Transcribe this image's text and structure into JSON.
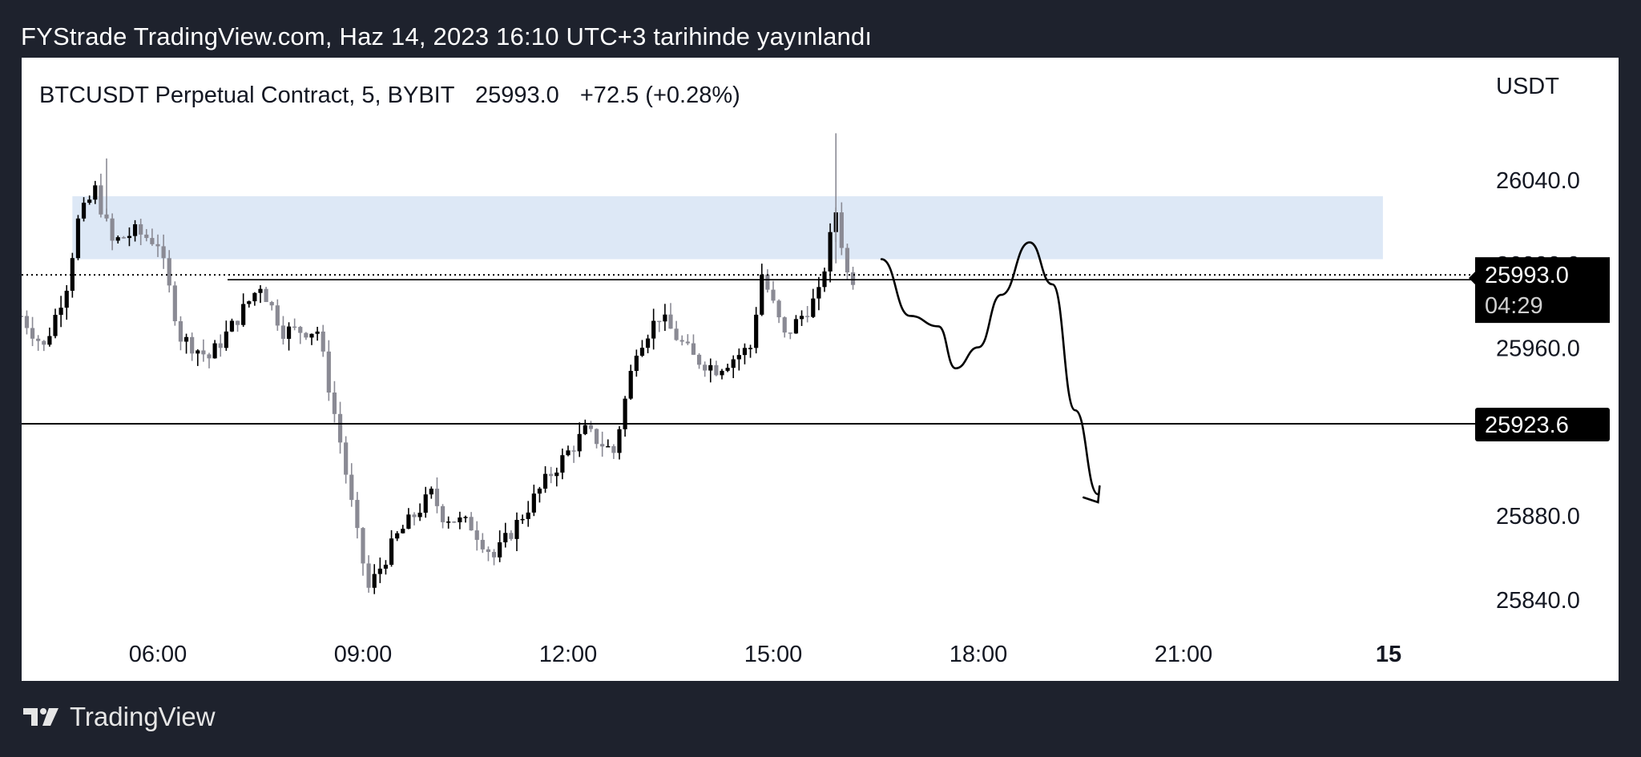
{
  "caption": "FYStrade TradingView.com, Haz 14, 2023 16:10 UTC+3 tarihinde yayınlandı",
  "footer": {
    "brand": "TradingView"
  },
  "colors": {
    "background": "#1e222d",
    "panel": "#ffffff",
    "candle_up": "#000000",
    "candle_down": "#8a8a94",
    "zone": "#dde8f6",
    "label_bg": "#000000"
  },
  "chart_data": {
    "type": "candlestick",
    "legend": {
      "symbol": "BTCUSDT Perpetual Contract, 5, BYBIT",
      "last": "25993.0",
      "change": "+72.5 (+0.28%)"
    },
    "y_unit": "USDT",
    "y_ticks": [
      "26040.0",
      "26000.0",
      "25960.0",
      "25880.0",
      "25840.0"
    ],
    "x_ticks": [
      "06:00",
      "09:00",
      "12:00",
      "15:00",
      "18:00",
      "21:00",
      "15"
    ],
    "ylim": [
      25823,
      26072
    ],
    "price_label": {
      "value": "25993.0",
      "countdown": "04:29"
    },
    "level_label": {
      "value": "25923.6"
    },
    "horizontal_lines": [
      25923.6,
      25993.0
    ],
    "zone": {
      "from_time": "04:45",
      "to_time": "23:55",
      "low": 26002,
      "high": 26032
    },
    "candles_close_path": [
      [
        "04:00",
        25975
      ],
      [
        "04:20",
        25960
      ],
      [
        "04:40",
        25990
      ],
      [
        "04:50",
        26020
      ],
      [
        "05:05",
        26035
      ],
      [
        "05:20",
        26010
      ],
      [
        "05:40",
        26015
      ],
      [
        "06:00",
        26010
      ],
      [
        "06:20",
        25965
      ],
      [
        "06:45",
        25955
      ],
      [
        "07:05",
        25970
      ],
      [
        "07:30",
        25990
      ],
      [
        "07:50",
        25968
      ],
      [
        "08:20",
        25968
      ],
      [
        "08:40",
        25915
      ],
      [
        "08:55",
        25870
      ],
      [
        "09:05",
        25845
      ],
      [
        "09:30",
        25870
      ],
      [
        "10:00",
        25890
      ],
      [
        "10:10",
        25880
      ],
      [
        "10:35",
        25875
      ],
      [
        "10:55",
        25860
      ],
      [
        "11:20",
        25880
      ],
      [
        "11:45",
        25900
      ],
      [
        "12:15",
        25920
      ],
      [
        "12:40",
        25910
      ],
      [
        "13:00",
        25960
      ],
      [
        "13:20",
        25975
      ],
      [
        "13:50",
        25955
      ],
      [
        "14:10",
        25950
      ],
      [
        "14:40",
        25960
      ],
      [
        "14:50",
        25995
      ],
      [
        "15:10",
        25965
      ],
      [
        "15:40",
        25985
      ],
      [
        "15:55",
        26025
      ],
      [
        "16:05",
        25995
      ],
      [
        "16:10",
        25993
      ]
    ],
    "forecast_path_times_prices": [
      [
        "16:35",
        26002
      ],
      [
        "17:00",
        25975
      ],
      [
        "17:25",
        25970
      ],
      [
        "17:40",
        25950
      ],
      [
        "18:00",
        25960
      ],
      [
        "18:20",
        25985
      ],
      [
        "18:45",
        26010
      ],
      [
        "19:05",
        25990
      ],
      [
        "19:25",
        25930
      ],
      [
        "19:45",
        25890
      ]
    ]
  }
}
